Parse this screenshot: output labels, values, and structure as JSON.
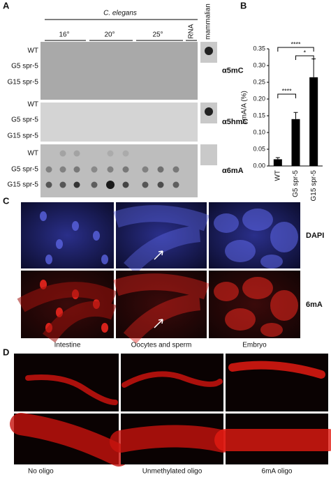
{
  "panel_labels": [
    "A",
    "B",
    "C",
    "D"
  ],
  "panel_a": {
    "species": "C. elegans",
    "temperatures": [
      "16°",
      "20°",
      "25°"
    ],
    "rna": "RNA",
    "mammalian": "mammalian",
    "blots": [
      {
        "antibody": "α5mC",
        "rows": [
          "WT",
          "G5 spr-5",
          "G15 spr-5"
        ]
      },
      {
        "antibody": "α5hmC",
        "rows": [
          "WT",
          "G5 spr-5",
          "G15 spr-5"
        ]
      },
      {
        "antibody": "α6mA",
        "rows": [
          "WT",
          "G5 spr-5",
          "G15 spr-5"
        ]
      }
    ]
  },
  "chart_data": {
    "type": "bar",
    "y_label": "6mA/A (%)",
    "categories": [
      "WT",
      "G5 spr-5",
      "G15 spr-5"
    ],
    "values": [
      0.02,
      0.14,
      0.265
    ],
    "errors": [
      0.005,
      0.02,
      0.055
    ],
    "color": "#000000",
    "ylim": [
      0,
      0.35
    ],
    "yticks": [
      {
        "value": 0,
        "label": "0.00"
      },
      {
        "value": 0.05,
        "label": "0.05"
      },
      {
        "value": 0.1,
        "label": "0.10"
      },
      {
        "value": 0.15,
        "label": "0.15"
      },
      {
        "value": 0.2,
        "label": "0.20"
      },
      {
        "value": 0.25,
        "label": "0.25"
      },
      {
        "value": 0.3,
        "label": "0.30"
      },
      {
        "value": 0.35,
        "label": "0.35"
      }
    ],
    "significance": [
      "****",
      "*",
      "****"
    ]
  },
  "panel_c": {
    "columns": [
      "Intestine",
      "Oocytes and sperm",
      "Embryo"
    ],
    "rows": [
      "DAPI",
      "6mA"
    ]
  },
  "panel_d": {
    "columns": [
      "No oligo",
      "Unmethylated oligo",
      "6mA oligo"
    ]
  }
}
